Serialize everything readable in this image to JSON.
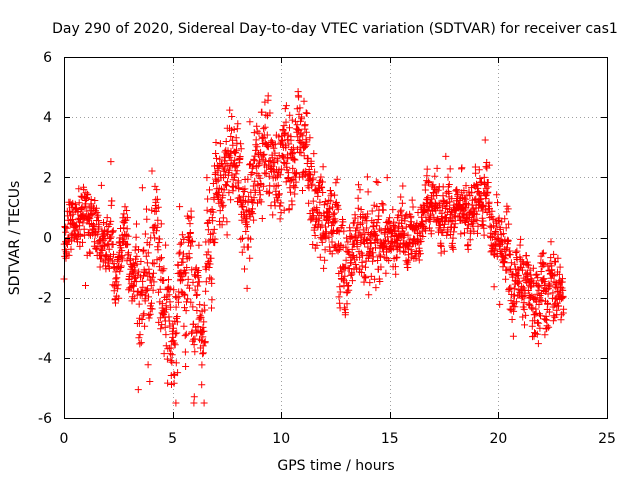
{
  "chart_data": {
    "type": "scatter",
    "title": "Day 290 of 2020, Sidereal Day-to-day VTEC variation (SDTVAR) for receiver cas1",
    "xlabel": "GPS time / hours",
    "ylabel": "SDTVAR / TECUs",
    "xlim": [
      0,
      25
    ],
    "ylim": [
      -6,
      6
    ],
    "xticks": [
      "0",
      "5",
      "10",
      "15",
      "20",
      "25"
    ],
    "yticks": [
      "-6",
      "-4",
      "-2",
      "0",
      "2",
      "4",
      "6"
    ],
    "grid": true,
    "marker": "+",
    "color": "#ff0000",
    "x_step_hours": 0.01,
    "series": [
      {
        "name": "SDTVAR",
        "anchors": [
          [
            0.0,
            -0.2
          ],
          [
            0.2,
            0.3
          ],
          [
            0.5,
            0.4
          ],
          [
            0.8,
            0.6
          ],
          [
            1.0,
            0.7
          ],
          [
            1.3,
            0.2
          ],
          [
            1.6,
            0.3
          ],
          [
            1.9,
            -0.5
          ],
          [
            2.2,
            0.4
          ],
          [
            2.4,
            -1.2
          ],
          [
            2.6,
            -0.8
          ],
          [
            2.8,
            0.3
          ],
          [
            3.0,
            -0.6
          ],
          [
            3.3,
            -1.5
          ],
          [
            3.5,
            -2.2
          ],
          [
            3.8,
            -0.9
          ],
          [
            4.0,
            -2.0
          ],
          [
            4.2,
            1.2
          ],
          [
            4.5,
            -1.8
          ],
          [
            4.8,
            -2.6
          ],
          [
            5.0,
            -3.4
          ],
          [
            5.2,
            -2.4
          ],
          [
            5.4,
            -0.5
          ],
          [
            5.6,
            -2.6
          ],
          [
            5.8,
            0.5
          ],
          [
            6.0,
            -3.0
          ],
          [
            6.2,
            -1.8
          ],
          [
            6.4,
            -3.6
          ],
          [
            6.6,
            -0.3
          ],
          [
            6.8,
            -1.0
          ],
          [
            7.0,
            2.0
          ],
          [
            7.2,
            0.9
          ],
          [
            7.4,
            1.8
          ],
          [
            7.6,
            2.8
          ],
          [
            7.8,
            2.2
          ],
          [
            8.0,
            2.6
          ],
          [
            8.2,
            1.3
          ],
          [
            8.5,
            1.0
          ],
          [
            8.8,
            2.6
          ],
          [
            9.0,
            1.8
          ],
          [
            9.3,
            2.8
          ],
          [
            9.6,
            2.4
          ],
          [
            9.9,
            2.2
          ],
          [
            10.2,
            3.0
          ],
          [
            10.5,
            2.0
          ],
          [
            10.8,
            3.2
          ],
          [
            11.0,
            3.4
          ],
          [
            11.2,
            2.4
          ],
          [
            11.5,
            1.6
          ],
          [
            11.8,
            1.2
          ],
          [
            12.0,
            0.6
          ],
          [
            12.3,
            0.4
          ],
          [
            12.6,
            0.2
          ],
          [
            12.9,
            -1.2
          ],
          [
            13.1,
            -0.6
          ],
          [
            13.4,
            -0.4
          ],
          [
            13.7,
            0.2
          ],
          [
            14.0,
            -0.5
          ],
          [
            14.3,
            -0.3
          ],
          [
            14.6,
            0.1
          ],
          [
            14.9,
            -0.2
          ],
          [
            15.2,
            0.3
          ],
          [
            15.5,
            0.2
          ],
          [
            15.8,
            -0.1
          ],
          [
            16.1,
            0.4
          ],
          [
            16.4,
            0.0
          ],
          [
            16.7,
            1.0
          ],
          [
            17.0,
            1.4
          ],
          [
            17.3,
            0.8
          ],
          [
            17.6,
            1.3
          ],
          [
            17.9,
            0.9
          ],
          [
            18.2,
            1.5
          ],
          [
            18.5,
            0.5
          ],
          [
            18.8,
            1.1
          ],
          [
            19.1,
            1.0
          ],
          [
            19.4,
            1.5
          ],
          [
            19.7,
            0.6
          ],
          [
            20.0,
            -0.4
          ],
          [
            20.2,
            -1.1
          ],
          [
            20.4,
            0.3
          ],
          [
            20.6,
            -1.5
          ],
          [
            20.8,
            -2.0
          ],
          [
            21.0,
            -1.2
          ],
          [
            21.2,
            -2.6
          ],
          [
            21.4,
            -1.6
          ],
          [
            21.6,
            -2.4
          ],
          [
            21.8,
            -1.8
          ],
          [
            22.0,
            -1.5
          ],
          [
            22.2,
            -2.3
          ],
          [
            22.4,
            -2.0
          ],
          [
            22.6,
            -2.2
          ],
          [
            22.8,
            -2.4
          ],
          [
            23.0,
            -2.2
          ]
        ]
      }
    ]
  }
}
